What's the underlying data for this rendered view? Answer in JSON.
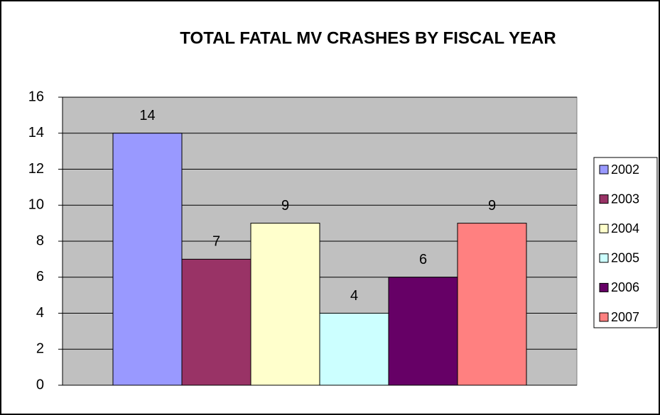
{
  "chart_data": {
    "type": "bar",
    "title": "TOTAL FATAL MV CRASHES BY FISCAL YEAR",
    "categories": [
      null
    ],
    "series": [
      {
        "name": "2002",
        "color": "#9999ff",
        "values": [
          14
        ]
      },
      {
        "name": "2003",
        "color": "#993366",
        "values": [
          7
        ]
      },
      {
        "name": "2004",
        "color": "#ffffcc",
        "values": [
          9
        ]
      },
      {
        "name": "2005",
        "color": "#ccffff",
        "values": [
          4
        ]
      },
      {
        "name": "2006",
        "color": "#660066",
        "values": [
          6
        ]
      },
      {
        "name": "2007",
        "color": "#ff8080",
        "values": [
          9
        ]
      }
    ],
    "ylim": [
      0,
      16
    ],
    "yticks": [
      0,
      2,
      4,
      6,
      8,
      10,
      12,
      14,
      16
    ],
    "grid": true,
    "legend": "right"
  }
}
